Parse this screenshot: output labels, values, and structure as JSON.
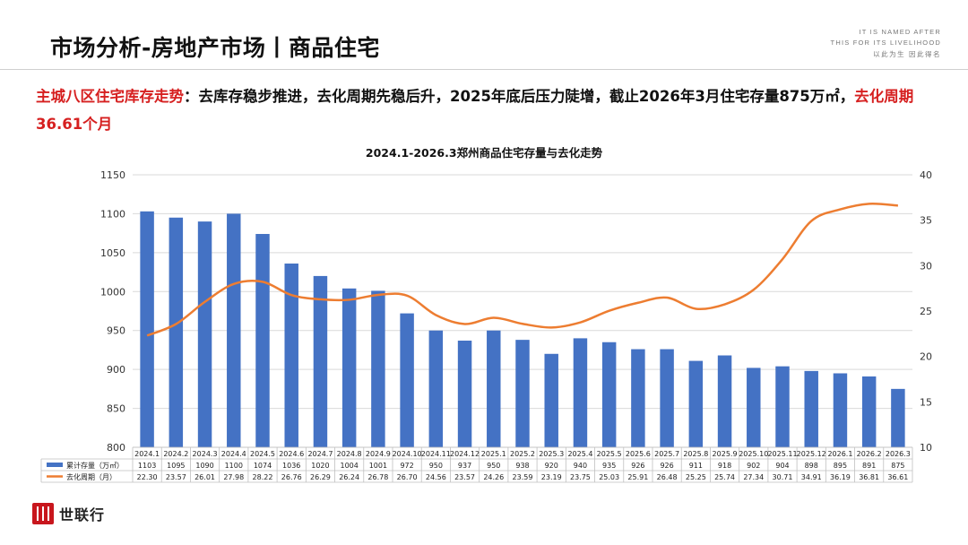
{
  "header": {
    "title": "市场分析-房地产市场丨商品住宅",
    "brand_en_line1": "IT IS NAMED AFTER",
    "brand_en_line2": "THIS FOR ITS LIVELIHOOD",
    "brand_cn": "以此为生 因此得名"
  },
  "headline": {
    "lead": "主城八区住宅库存走势",
    "body": "：去库存稳步推进，去化周期先稳后升，2025年底后压力陡增，截止2026年3月住宅存量875万㎡，",
    "tail": "去化周期36.61个月"
  },
  "footer": {
    "logo_text": "世联行"
  },
  "colors": {
    "bar": "#4472c4",
    "line": "#ed7d31",
    "accent_red": "#d62020"
  },
  "chart_data": {
    "type": "bar",
    "title": "2024.1-2026.3郑州商品住宅存量与去化走势",
    "categories": [
      "2024.1",
      "2024.2",
      "2024.3",
      "2024.4",
      "2024.5",
      "2024.6",
      "2024.7",
      "2024.8",
      "2024.9",
      "2024.10",
      "2024.11",
      "2024.12",
      "2025.1",
      "2025.2",
      "2025.3",
      "2025.4",
      "2025.5",
      "2025.6",
      "2025.7",
      "2025.8",
      "2025.9",
      "2025.10",
      "2025.11",
      "2025.12",
      "2026.1",
      "2026.2",
      "2026.3"
    ],
    "series": [
      {
        "name": "累计存量（万㎡）",
        "type": "bar",
        "axis": "left",
        "values": [
          1103,
          1095,
          1090,
          1100,
          1074,
          1036,
          1020,
          1004,
          1001,
          972,
          950,
          937,
          950,
          938,
          920,
          940,
          935,
          926,
          926,
          911,
          918,
          902,
          904,
          898,
          895,
          891,
          875
        ],
        "labels": [
          "1103",
          "1095",
          "1090",
          "1100",
          "1074",
          "1036",
          "1020",
          "1004",
          "1001",
          "972",
          "950",
          "937",
          "950",
          "938",
          "920",
          "940",
          "935",
          "926",
          "926",
          "911",
          "918",
          "902",
          "904",
          "898",
          "895",
          "891",
          "875"
        ]
      },
      {
        "name": "去化周期（月）",
        "type": "line",
        "axis": "right",
        "values": [
          22.3,
          23.57,
          26.01,
          27.98,
          28.22,
          26.76,
          26.29,
          26.24,
          26.78,
          26.7,
          24.56,
          23.57,
          24.26,
          23.59,
          23.19,
          23.75,
          25.03,
          25.91,
          26.48,
          25.25,
          25.74,
          27.34,
          30.71,
          34.91,
          36.19,
          36.81,
          36.61
        ],
        "labels": [
          "22.30",
          "23.57",
          "26.01",
          "27.98",
          "28.22",
          "26.76",
          "26.29",
          "26.24",
          "26.78",
          "26.70",
          "24.56",
          "23.57",
          "24.26",
          "23.59",
          "23.19",
          "23.75",
          "25.03",
          "25.91",
          "26.48",
          "25.25",
          "25.74",
          "27.34",
          "30.71",
          "34.91",
          "36.19",
          "36.81",
          "36.61"
        ]
      }
    ],
    "y_left": {
      "min": 800,
      "max": 1150,
      "ticks": [
        "800",
        "850",
        "900",
        "950",
        "1000",
        "1050",
        "1100",
        "1150"
      ]
    },
    "y_right": {
      "min": 10,
      "max": 40,
      "ticks": [
        "10",
        "15",
        "20",
        "25",
        "30",
        "35",
        "40"
      ]
    },
    "grid": true,
    "legend": "data-table-bottom"
  }
}
